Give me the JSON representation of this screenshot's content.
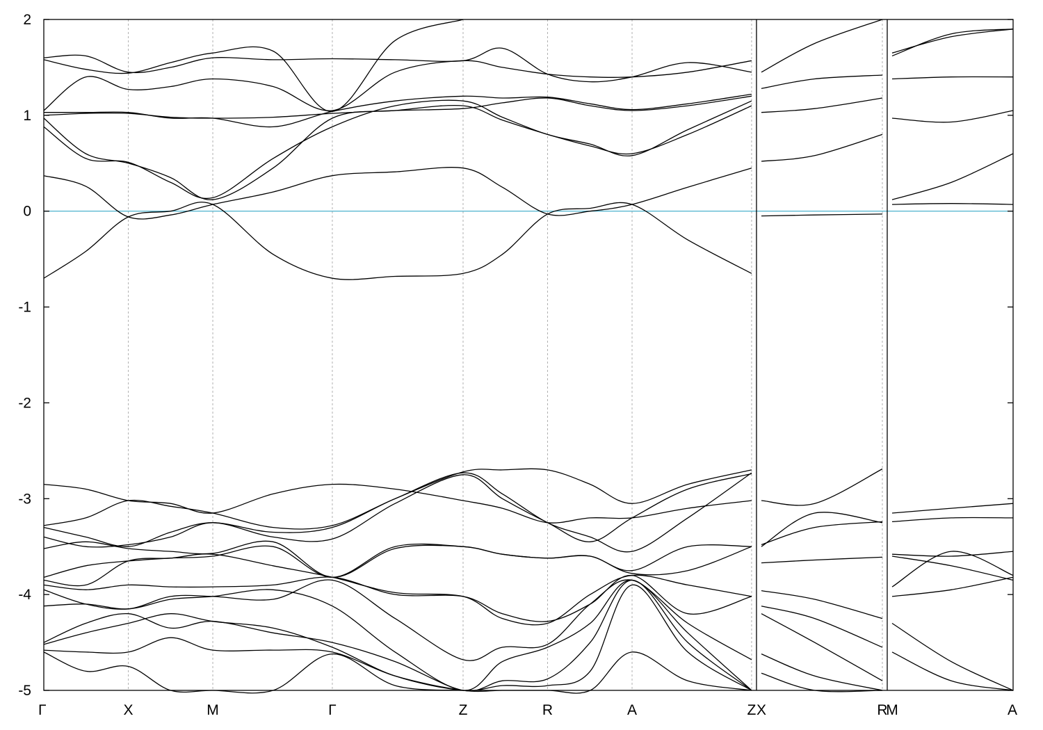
{
  "chart_data": {
    "type": "line",
    "title": "",
    "xlabel": "",
    "ylabel": "",
    "ylim": [
      -5,
      2
    ],
    "yticks": [
      2,
      1,
      0,
      -1,
      -2,
      -3,
      -4,
      -5
    ],
    "ytick_labels": [
      "2",
      "1",
      "0",
      "-1",
      "-2",
      "-3",
      "-4",
      "-5"
    ],
    "x_axis": {
      "kpoint_positions": [
        0,
        0.866,
        1.732,
        2.957,
        4.297,
        5.163,
        6.029,
        7.254,
        8.594,
        9.934
      ],
      "kpoint_labels": [
        "Γ",
        "X",
        "M",
        "Γ",
        "Z",
        "R",
        "A",
        "Z",
        "X",
        "R",
        "M",
        "A"
      ],
      "kpoint_label_positions": [
        0,
        0.866,
        1.732,
        2.957,
        4.297,
        5.163,
        6.029,
        7.254,
        7.354,
        8.594,
        8.694,
        9.934
      ],
      "path_breaks": [
        7.304,
        8.644
      ]
    },
    "fermi_level": {
      "value": 0,
      "color": "#5bb8d0"
    },
    "grid": "vertical dashed lines at high-symmetry k-points",
    "line_color": "#000000",
    "series": [
      {
        "x": [
          0,
          0.43,
          0.866,
          1.3,
          1.732,
          2.35,
          2.957,
          3.6,
          4.297,
          4.7,
          5.163,
          5.6,
          6.029,
          6.6,
          7.254
        ],
        "values": [
          -0.7,
          -0.42,
          -0.06,
          0.0,
          0.07,
          -0.45,
          -0.7,
          -0.68,
          -0.65,
          -0.45,
          -0.03,
          0.03,
          0.07,
          -0.3,
          -0.65
        ]
      },
      {
        "x": [
          0,
          0.43,
          0.866,
          1.3,
          1.732,
          2.35,
          2.957,
          3.6,
          4.297,
          4.7,
          5.163,
          5.6,
          6.029,
          6.6,
          7.254
        ],
        "values": [
          0.37,
          0.26,
          -0.06,
          -0.04,
          0.07,
          0.2,
          0.37,
          0.41,
          0.45,
          0.25,
          -0.03,
          0.0,
          0.07,
          0.25,
          0.45
        ]
      },
      {
        "x": [
          0,
          0.43,
          0.866,
          1.3,
          1.732,
          2.35,
          2.957,
          3.6,
          4.297,
          4.7,
          5.163,
          5.6,
          6.029,
          6.6,
          7.254
        ],
        "values": [
          0.97,
          0.6,
          0.5,
          0.35,
          0.12,
          0.45,
          0.97,
          1.05,
          1.1,
          0.95,
          0.8,
          0.68,
          0.6,
          0.8,
          1.1
        ]
      },
      {
        "x": [
          0,
          0.43,
          0.866,
          1.3,
          1.732,
          2.35,
          2.957,
          3.6,
          4.297,
          4.7,
          5.163,
          5.6,
          6.029,
          6.6,
          7.254
        ],
        "values": [
          0.88,
          0.55,
          0.51,
          0.3,
          0.14,
          0.55,
          0.88,
          1.1,
          1.15,
          0.98,
          0.8,
          0.7,
          0.58,
          0.85,
          1.15
        ]
      },
      {
        "x": [
          0,
          0.43,
          0.866,
          1.3,
          1.732,
          2.35,
          2.957,
          3.6,
          4.297,
          4.7,
          5.163,
          5.6,
          6.029,
          6.6,
          7.254
        ],
        "values": [
          1.0,
          1.02,
          1.02,
          0.98,
          0.97,
          0.98,
          1.02,
          1.05,
          1.07,
          1.13,
          1.18,
          1.1,
          1.05,
          1.1,
          1.2
        ]
      },
      {
        "x": [
          0,
          0.43,
          0.866,
          1.3,
          1.732,
          2.35,
          2.957,
          3.6,
          4.297,
          4.7,
          5.163,
          5.6,
          6.029,
          6.6,
          7.254
        ],
        "values": [
          1.03,
          1.03,
          1.03,
          0.97,
          0.97,
          0.88,
          1.04,
          1.15,
          1.2,
          1.18,
          1.19,
          1.12,
          1.06,
          1.12,
          1.22
        ]
      },
      {
        "x": [
          0,
          0.43,
          0.866,
          1.3,
          1.732,
          2.35,
          2.957,
          3.6,
          4.297,
          4.7,
          5.163,
          5.6,
          6.029,
          6.6,
          7.254
        ],
        "values": [
          1.05,
          1.4,
          1.27,
          1.3,
          1.38,
          1.3,
          1.05,
          1.45,
          1.57,
          1.5,
          1.43,
          1.4,
          1.4,
          1.45,
          1.57
        ]
      },
      {
        "x": [
          0,
          0.43,
          0.866,
          1.3,
          1.732,
          2.35,
          2.957,
          3.6,
          4.297,
          4.7,
          5.163,
          5.6,
          6.029,
          6.6,
          7.254
        ],
        "values": [
          1.6,
          1.62,
          1.45,
          1.5,
          1.6,
          1.58,
          1.59,
          1.58,
          1.57,
          1.7,
          1.43,
          1.35,
          1.4,
          1.55,
          1.45
        ]
      },
      {
        "x": [
          0,
          0.43,
          0.866,
          1.3,
          1.732,
          2.35,
          2.957,
          3.6,
          4.297
        ],
        "values": [
          1.58,
          1.48,
          1.44,
          1.55,
          1.65,
          1.67,
          1.04,
          1.78,
          2.0
        ]
      },
      {
        "x": [
          0,
          0.43,
          0.866,
          1.3,
          1.732,
          2.35,
          2.957,
          3.6,
          4.297,
          4.7,
          5.163,
          5.6,
          6.029,
          6.6,
          7.254
        ],
        "values": [
          -2.85,
          -2.9,
          -3.02,
          -3.05,
          -3.15,
          -2.95,
          -2.85,
          -2.9,
          -3.02,
          -3.1,
          -3.25,
          -3.2,
          -3.2,
          -3.1,
          -3.02
        ]
      },
      {
        "x": [
          0,
          0.43,
          0.866,
          1.3,
          1.732,
          2.35,
          2.957,
          3.6,
          4.297,
          4.7,
          5.163,
          5.6,
          6.029,
          6.6,
          7.254
        ],
        "values": [
          -3.28,
          -3.2,
          -3.02,
          -3.08,
          -3.15,
          -3.3,
          -3.28,
          -3.0,
          -2.72,
          -2.7,
          -2.7,
          -2.85,
          -3.05,
          -2.85,
          -2.7
        ]
      },
      {
        "x": [
          0,
          0.43,
          0.866,
          1.3,
          1.732,
          2.35,
          2.957,
          3.6,
          4.297,
          4.7,
          5.163,
          5.6,
          6.029,
          6.6,
          7.254
        ],
        "values": [
          -3.3,
          -3.4,
          -3.5,
          -3.35,
          -3.25,
          -3.35,
          -3.3,
          -3.0,
          -2.73,
          -2.95,
          -3.25,
          -3.4,
          -3.55,
          -3.2,
          -2.73
        ]
      },
      {
        "x": [
          0,
          0.43,
          0.866,
          1.3,
          1.732,
          2.35,
          2.957,
          3.6,
          4.297,
          4.7,
          5.163,
          5.6,
          6.029,
          6.6,
          7.254
        ],
        "values": [
          -3.4,
          -3.5,
          -3.48,
          -3.4,
          -3.25,
          -3.4,
          -3.42,
          -3.05,
          -2.75,
          -3.0,
          -3.25,
          -3.45,
          -3.2,
          -2.9,
          -2.74
        ]
      },
      {
        "x": [
          0,
          0.43,
          0.866,
          1.3,
          1.732,
          2.35,
          2.957,
          3.6,
          4.297,
          4.7,
          5.163,
          5.6,
          6.029,
          6.6,
          7.254
        ],
        "values": [
          -3.52,
          -3.45,
          -3.52,
          -3.55,
          -3.57,
          -3.45,
          -3.82,
          -3.52,
          -3.5,
          -3.58,
          -3.62,
          -3.6,
          -3.78,
          -3.75,
          -3.5
        ]
      },
      {
        "x": [
          0,
          0.43,
          0.866,
          1.3,
          1.732,
          2.35,
          2.957,
          3.6,
          4.297,
          4.7,
          5.163,
          5.6,
          6.029,
          6.6,
          7.254
        ],
        "values": [
          -3.82,
          -3.7,
          -3.65,
          -3.62,
          -3.6,
          -3.5,
          -3.82,
          -3.5,
          -3.5,
          -3.58,
          -3.62,
          -3.6,
          -3.75,
          -3.5,
          -3.5
        ]
      },
      {
        "x": [
          0,
          0.43,
          0.866,
          1.3,
          1.732,
          2.35,
          2.957,
          3.6,
          4.297,
          4.7,
          5.163,
          5.6,
          6.029,
          6.6,
          7.254
        ],
        "values": [
          -3.85,
          -3.9,
          -3.65,
          -3.62,
          -3.58,
          -3.7,
          -3.82,
          -3.98,
          -4.02,
          -4.25,
          -4.3,
          -4.0,
          -3.8,
          -3.9,
          -4.02
        ]
      },
      {
        "x": [
          0,
          0.43,
          0.866,
          1.3,
          1.732,
          2.35,
          2.957,
          3.6,
          4.297,
          4.7,
          5.163,
          5.6,
          6.029,
          6.6,
          7.254
        ],
        "values": [
          -3.9,
          -3.95,
          -3.9,
          -3.92,
          -3.92,
          -3.9,
          -3.82,
          -4.0,
          -4.02,
          -4.2,
          -4.28,
          -4.1,
          -3.8,
          -4.2,
          -4.02
        ]
      },
      {
        "x": [
          0,
          0.43,
          0.866,
          1.3,
          1.732,
          2.35,
          2.957,
          3.6,
          4.297,
          4.7,
          5.163,
          5.6,
          6.029,
          6.6,
          7.254
        ],
        "values": [
          -3.95,
          -4.1,
          -4.15,
          -4.02,
          -4.02,
          -4.05,
          -3.85,
          -4.25,
          -4.68,
          -4.55,
          -4.52,
          -4.1,
          -3.85,
          -4.3,
          -4.68
        ]
      },
      {
        "x": [
          0,
          0.43,
          0.866,
          1.3,
          1.732,
          2.35,
          2.957,
          3.6,
          4.297,
          4.7,
          5.163,
          5.6,
          6.029,
          6.6,
          7.254
        ],
        "values": [
          -4.12,
          -4.1,
          -4.15,
          -4.05,
          -4.02,
          -3.95,
          -4.12,
          -4.6,
          -5.0,
          -4.7,
          -4.55,
          -4.3,
          -3.85,
          -4.4,
          -5.0
        ]
      },
      {
        "x": [
          0,
          0.43,
          0.866,
          1.3,
          1.732,
          2.35,
          2.957,
          3.6,
          4.297,
          4.7,
          5.163,
          5.6,
          6.029,
          6.6,
          7.254
        ],
        "values": [
          -4.5,
          -4.3,
          -4.2,
          -4.35,
          -4.28,
          -4.4,
          -4.5,
          -4.7,
          -5.0,
          -4.9,
          -4.88,
          -4.5,
          -3.85,
          -4.5,
          -5.0
        ]
      },
      {
        "x": [
          0,
          0.43,
          0.866,
          1.3,
          1.732,
          2.35,
          2.957,
          3.6,
          4.297,
          4.7,
          5.163,
          5.6,
          6.029,
          6.6,
          7.254
        ],
        "values": [
          -4.52,
          -4.4,
          -4.3,
          -4.2,
          -4.28,
          -4.35,
          -4.55,
          -4.85,
          -5.0,
          -4.95,
          -4.95,
          -4.8,
          -3.9,
          -4.6,
          -5.0
        ]
      },
      {
        "x": [
          0,
          0.43,
          0.866,
          1.3,
          1.732,
          2.35,
          2.957,
          3.6,
          4.297,
          4.7,
          5.163,
          5.6,
          6.029,
          6.6,
          7.254
        ],
        "values": [
          -4.58,
          -4.6,
          -4.6,
          -4.45,
          -4.58,
          -4.58,
          -4.6,
          -4.85,
          -5.0,
          -5.0,
          -5.0,
          -5.0,
          -4.6,
          -4.9,
          -5.0
        ]
      },
      {
        "x": [
          0,
          0.43,
          0.866,
          1.3,
          1.732,
          2.35,
          2.957,
          3.6,
          4.297
        ],
        "values": [
          -4.6,
          -4.8,
          -4.75,
          -5.0,
          -5.0,
          -5.0,
          -4.62,
          -4.95,
          -5.0
        ]
      },
      {
        "x": [
          7.354,
          7.9,
          8.594
        ],
        "values": [
          1.45,
          1.75,
          2.0
        ]
      },
      {
        "x": [
          7.354,
          7.9,
          8.594
        ],
        "values": [
          1.28,
          1.38,
          1.42
        ]
      },
      {
        "x": [
          7.354,
          7.9,
          8.594
        ],
        "values": [
          1.03,
          1.07,
          1.18
        ]
      },
      {
        "x": [
          7.354,
          7.9,
          8.594
        ],
        "values": [
          0.52,
          0.58,
          0.8
        ]
      },
      {
        "x": [
          7.354,
          7.9,
          8.594
        ],
        "values": [
          -0.05,
          -0.04,
          -0.03
        ]
      },
      {
        "x": [
          7.354,
          7.9,
          8.594
        ],
        "values": [
          -3.02,
          -3.05,
          -2.69
        ]
      },
      {
        "x": [
          7.354,
          7.9,
          8.594
        ],
        "values": [
          -3.5,
          -3.15,
          -3.25
        ]
      },
      {
        "x": [
          7.354,
          7.9,
          8.594
        ],
        "values": [
          -3.48,
          -3.3,
          -3.24
        ]
      },
      {
        "x": [
          7.354,
          7.9,
          8.594
        ],
        "values": [
          -3.67,
          -3.64,
          -3.61
        ]
      },
      {
        "x": [
          7.354,
          7.9,
          8.594
        ],
        "values": [
          -3.96,
          -4.05,
          -4.25
        ]
      },
      {
        "x": [
          7.354,
          7.9,
          8.594
        ],
        "values": [
          -4.12,
          -4.25,
          -4.55
        ]
      },
      {
        "x": [
          7.354,
          7.9,
          8.594
        ],
        "values": [
          -4.2,
          -4.5,
          -4.9
        ]
      },
      {
        "x": [
          7.354,
          7.9,
          8.594
        ],
        "values": [
          -4.62,
          -4.85,
          -5.0
        ]
      },
      {
        "x": [
          7.354,
          7.9,
          8.594
        ],
        "values": [
          -4.82,
          -5.0,
          -5.0
        ]
      },
      {
        "x": [
          8.694,
          9.3,
          9.934
        ],
        "values": [
          1.62,
          1.85,
          1.9
        ]
      },
      {
        "x": [
          8.694,
          9.3,
          9.934
        ],
        "values": [
          1.65,
          1.82,
          1.9
        ]
      },
      {
        "x": [
          8.694,
          9.3,
          9.934
        ],
        "values": [
          1.38,
          1.4,
          1.4
        ]
      },
      {
        "x": [
          8.694,
          9.3,
          9.934
        ],
        "values": [
          0.97,
          0.93,
          1.05
        ]
      },
      {
        "x": [
          8.694,
          9.3,
          9.934
        ],
        "values": [
          0.12,
          0.3,
          0.6
        ]
      },
      {
        "x": [
          8.694,
          9.3,
          9.934
        ],
        "values": [
          0.07,
          0.08,
          0.07
        ]
      },
      {
        "x": [
          8.694,
          9.3,
          9.934
        ],
        "values": [
          -3.15,
          -3.1,
          -3.05
        ]
      },
      {
        "x": [
          8.694,
          9.3,
          9.934
        ],
        "values": [
          -3.24,
          -3.2,
          -3.2
        ]
      },
      {
        "x": [
          8.694,
          9.3,
          9.934
        ],
        "values": [
          -3.58,
          -3.6,
          -3.55
        ]
      },
      {
        "x": [
          8.694,
          9.3,
          9.934
        ],
        "values": [
          -3.6,
          -3.7,
          -3.85
        ]
      },
      {
        "x": [
          8.694,
          9.3,
          9.934
        ],
        "values": [
          -3.92,
          -3.55,
          -3.8
        ]
      },
      {
        "x": [
          8.694,
          9.3,
          9.934
        ],
        "values": [
          -4.02,
          -3.95,
          -3.82
        ]
      },
      {
        "x": [
          8.694,
          9.3,
          9.934
        ],
        "values": [
          -4.3,
          -4.7,
          -5.0
        ]
      },
      {
        "x": [
          8.694,
          9.3,
          9.934
        ],
        "values": [
          -4.6,
          -4.9,
          -5.0
        ]
      }
    ]
  }
}
